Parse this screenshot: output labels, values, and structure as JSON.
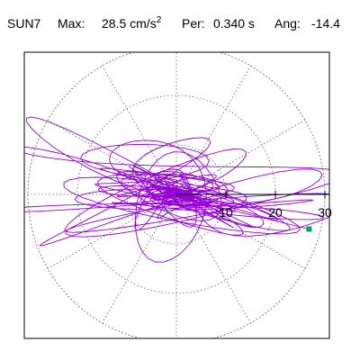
{
  "header": {
    "station": "SUN7",
    "max_label": "Max:",
    "max_value": "28.5 cm/s",
    "max_unit_exp": "2",
    "per_label": "Per:",
    "per_value": "0.340 s",
    "ang_label": "Ang:",
    "ang_value": "-14.4"
  },
  "chart_data": {
    "type": "polar-orbit",
    "max_amplitude": 28.5,
    "period_s": 0.34,
    "angle_deg": -14.4,
    "rings": [
      10,
      20,
      30
    ],
    "radial_axis_range": [
      0,
      30
    ],
    "radial_tick_labels": [
      "10",
      "20",
      "30"
    ],
    "spoke_step_deg": 30,
    "grid": true,
    "end_marker": {
      "x": 26.8,
      "y": -7.0
    },
    "colors": {
      "orbit": "#9400d3",
      "marker": "#00a070",
      "grid": "#666666",
      "frame": "#000000",
      "radial_axis": "#000000"
    }
  }
}
